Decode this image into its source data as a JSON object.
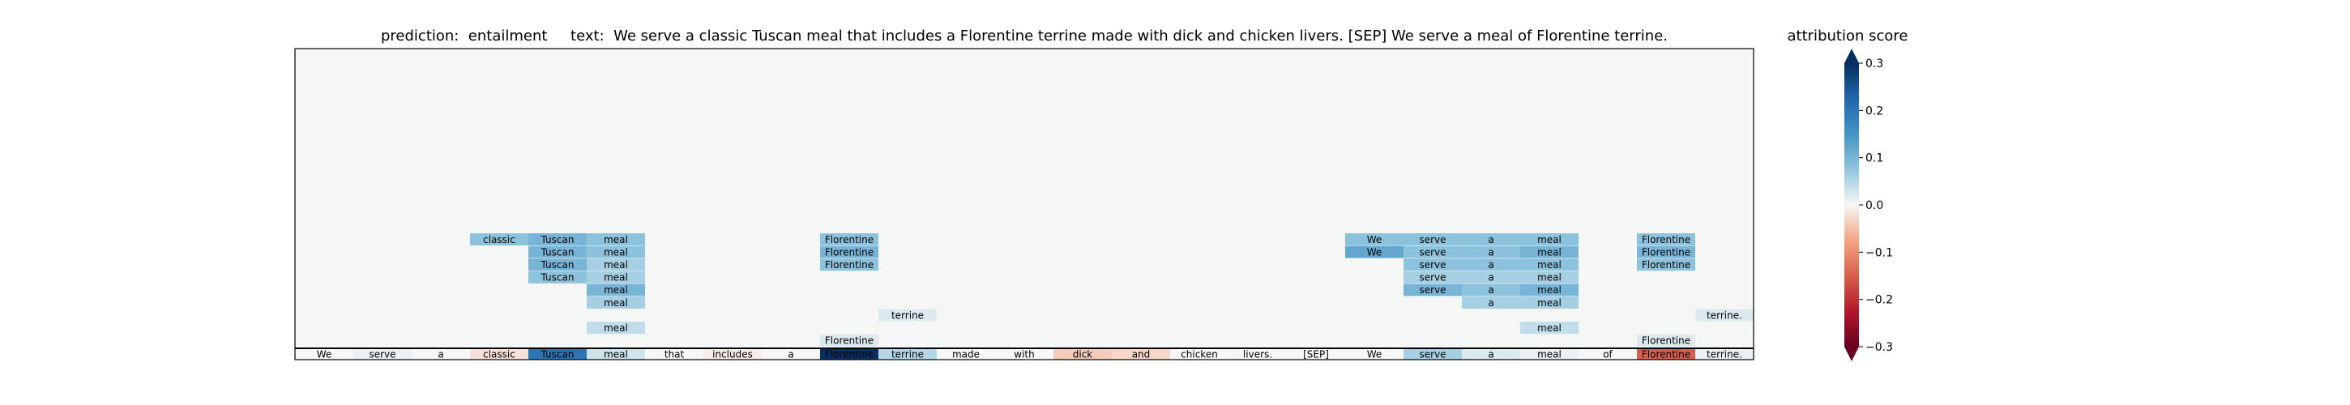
{
  "chart_data": {
    "type": "heatmap",
    "title": "prediction:  entailment     text:  We serve a classic Tuscan meal that includes a Florentine terrine made with dick and chicken livers. [SEP] We serve a meal of Florentine terrine.",
    "colorbar_label": "attribution score",
    "colormap": "RdBu",
    "color_range": [
      -0.3,
      0.3
    ],
    "colorbar_ticks": [
      0.3,
      0.2,
      0.1,
      0.0,
      -0.1,
      -0.2,
      -0.3
    ],
    "colorbar_tick_labels": [
      "0.3",
      "0.2",
      "0.1",
      "0.0",
      "−0.1",
      "−0.2",
      "−0.3"
    ],
    "tokens": [
      "We",
      "serve",
      "a",
      "classic",
      "Tuscan",
      "meal",
      "that",
      "includes",
      "a",
      "Florentine",
      "terrine",
      "made",
      "with",
      "dick",
      "and",
      "chicken",
      "livers.",
      "[SEP]",
      "We",
      "serve",
      "a",
      "meal",
      "of",
      "Florentine",
      "terrine."
    ],
    "token_scores": [
      0.0,
      0.01,
      0.0,
      -0.02,
      0.2,
      0.03,
      0.0,
      -0.01,
      0.0,
      0.3,
      0.05,
      0.0,
      0.0,
      -0.04,
      -0.03,
      0.0,
      0.0,
      0.0,
      0.0,
      0.06,
      0.02,
      0.01,
      0.0,
      -0.15,
      0.01
    ],
    "rows": [
      {
        "cells": [
          {
            "col": 3,
            "text": "classic",
            "score": 0.08
          },
          {
            "col": 4,
            "text": "Tuscan",
            "score": 0.1
          },
          {
            "col": 5,
            "text": "meal",
            "score": 0.08
          },
          {
            "col": 9,
            "text": "Florentine",
            "score": 0.08
          },
          {
            "col": 18,
            "text": "We",
            "score": 0.08
          },
          {
            "col": 19,
            "text": "serve",
            "score": 0.08
          },
          {
            "col": 20,
            "text": "a",
            "score": 0.08
          },
          {
            "col": 21,
            "text": "meal",
            "score": 0.08
          },
          {
            "col": 23,
            "text": "Florentine",
            "score": 0.08
          }
        ]
      },
      {
        "cells": [
          {
            "col": 4,
            "text": "Tuscan",
            "score": 0.1
          },
          {
            "col": 5,
            "text": "meal",
            "score": 0.08
          },
          {
            "col": 9,
            "text": "Florentine",
            "score": 0.1
          },
          {
            "col": 18,
            "text": "We",
            "score": 0.12
          },
          {
            "col": 19,
            "text": "serve",
            "score": 0.08
          },
          {
            "col": 20,
            "text": "a",
            "score": 0.08
          },
          {
            "col": 21,
            "text": "meal",
            "score": 0.1
          },
          {
            "col": 23,
            "text": "Florentine",
            "score": 0.1
          }
        ]
      },
      {
        "cells": [
          {
            "col": 4,
            "text": "Tuscan",
            "score": 0.1
          },
          {
            "col": 5,
            "text": "meal",
            "score": 0.06
          },
          {
            "col": 9,
            "text": "Florentine",
            "score": 0.08
          },
          {
            "col": 19,
            "text": "serve",
            "score": 0.08
          },
          {
            "col": 20,
            "text": "a",
            "score": 0.08
          },
          {
            "col": 21,
            "text": "meal",
            "score": 0.08
          },
          {
            "col": 23,
            "text": "Florentine",
            "score": 0.08
          }
        ]
      },
      {
        "cells": [
          {
            "col": 4,
            "text": "Tuscan",
            "score": 0.08
          },
          {
            "col": 5,
            "text": "meal",
            "score": 0.06
          },
          {
            "col": 19,
            "text": "serve",
            "score": 0.06
          },
          {
            "col": 20,
            "text": "a",
            "score": 0.06
          },
          {
            "col": 21,
            "text": "meal",
            "score": 0.06
          }
        ]
      },
      {
        "cells": [
          {
            "col": 5,
            "text": "meal",
            "score": 0.1
          },
          {
            "col": 19,
            "text": "serve",
            "score": 0.1
          },
          {
            "col": 20,
            "text": "a",
            "score": 0.08
          },
          {
            "col": 21,
            "text": "meal",
            "score": 0.1
          }
        ]
      },
      {
        "cells": [
          {
            "col": 5,
            "text": "meal",
            "score": 0.06
          },
          {
            "col": 20,
            "text": "a",
            "score": 0.06
          },
          {
            "col": 21,
            "text": "meal",
            "score": 0.06
          }
        ]
      },
      {
        "cells": [
          {
            "col": 10,
            "text": "terrine",
            "score": 0.02
          },
          {
            "col": 24,
            "text": "terrine.",
            "score": 0.02
          }
        ]
      },
      {
        "cells": [
          {
            "col": 5,
            "text": "meal",
            "score": 0.04
          },
          {
            "col": 21,
            "text": "meal",
            "score": 0.04
          }
        ]
      },
      {
        "cells": [
          {
            "col": 9,
            "text": "Florentine",
            "score": 0.02
          },
          {
            "col": 23,
            "text": "Florentine",
            "score": 0.02
          }
        ]
      }
    ],
    "grid": false
  }
}
